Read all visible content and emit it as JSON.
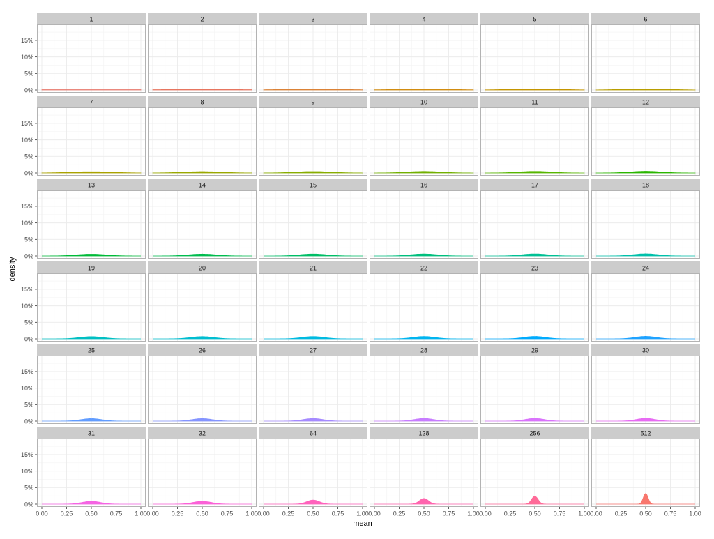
{
  "chart_data": {
    "type": "area",
    "subtype": "faceted-density",
    "title": "",
    "xlabel": "mean",
    "ylabel": "density",
    "x_ticks": [
      "0.00",
      "0.25",
      "0.50",
      "0.75",
      "1.00"
    ],
    "y_ticks": [
      "0%",
      "5%",
      "10%",
      "15%"
    ],
    "xlim": [
      0,
      1
    ],
    "ylim": [
      0,
      0.19
    ],
    "grid": true,
    "legend": "none",
    "facets": [
      {
        "label": "1",
        "n": 1,
        "color": "#E8776B"
      },
      {
        "label": "2",
        "n": 2,
        "color": "#E7755F"
      },
      {
        "label": "3",
        "n": 3,
        "color": "#DB8237"
      },
      {
        "label": "4",
        "n": 4,
        "color": "#D18C10"
      },
      {
        "label": "5",
        "n": 5,
        "color": "#C49500"
      },
      {
        "label": "6",
        "n": 6,
        "color": "#B89D00"
      },
      {
        "label": "7",
        "n": 7,
        "color": "#AAA200"
      },
      {
        "label": "8",
        "n": 8,
        "color": "#9AA800"
      },
      {
        "label": "9",
        "n": 9,
        "color": "#88AD00"
      },
      {
        "label": "10",
        "n": 10,
        "color": "#72B000"
      },
      {
        "label": "11",
        "n": 11,
        "color": "#57B600"
      },
      {
        "label": "12",
        "n": 12,
        "color": "#2BB600"
      },
      {
        "label": "13",
        "n": 13,
        "color": "#00BA38"
      },
      {
        "label": "14",
        "n": 14,
        "color": "#00BC4F"
      },
      {
        "label": "15",
        "n": 15,
        "color": "#00BE67"
      },
      {
        "label": "16",
        "n": 16,
        "color": "#00BF7D"
      },
      {
        "label": "17",
        "n": 17,
        "color": "#00C094"
      },
      {
        "label": "18",
        "n": 18,
        "color": "#00C0AA"
      },
      {
        "label": "19",
        "n": 19,
        "color": "#00BFC2"
      },
      {
        "label": "20",
        "n": 20,
        "color": "#00BDD0"
      },
      {
        "label": "21",
        "n": 21,
        "color": "#00BAE0"
      },
      {
        "label": "22",
        "n": 22,
        "color": "#00B4EF"
      },
      {
        "label": "23",
        "n": 23,
        "color": "#00ABFD"
      },
      {
        "label": "24",
        "n": 24,
        "color": "#1FA2FF"
      },
      {
        "label": "25",
        "n": 25,
        "color": "#619CFF"
      },
      {
        "label": "26",
        "n": 26,
        "color": "#8494FF"
      },
      {
        "label": "27",
        "n": 27,
        "color": "#A58AFF"
      },
      {
        "label": "28",
        "n": 28,
        "color": "#C77CFF"
      },
      {
        "label": "29",
        "n": 29,
        "color": "#D973FC"
      },
      {
        "label": "30",
        "n": 30,
        "color": "#E76BF3"
      },
      {
        "label": "31",
        "n": 31,
        "color": "#F564E3"
      },
      {
        "label": "32",
        "n": 32,
        "color": "#FB61D7"
      },
      {
        "label": "64",
        "n": 64,
        "color": "#FF62BC"
      },
      {
        "label": "128",
        "n": 128,
        "color": "#FF65AE"
      },
      {
        "label": "256",
        "n": 256,
        "color": "#FF6A98"
      },
      {
        "label": "512",
        "n": 512,
        "color": "#F8766D"
      }
    ]
  }
}
